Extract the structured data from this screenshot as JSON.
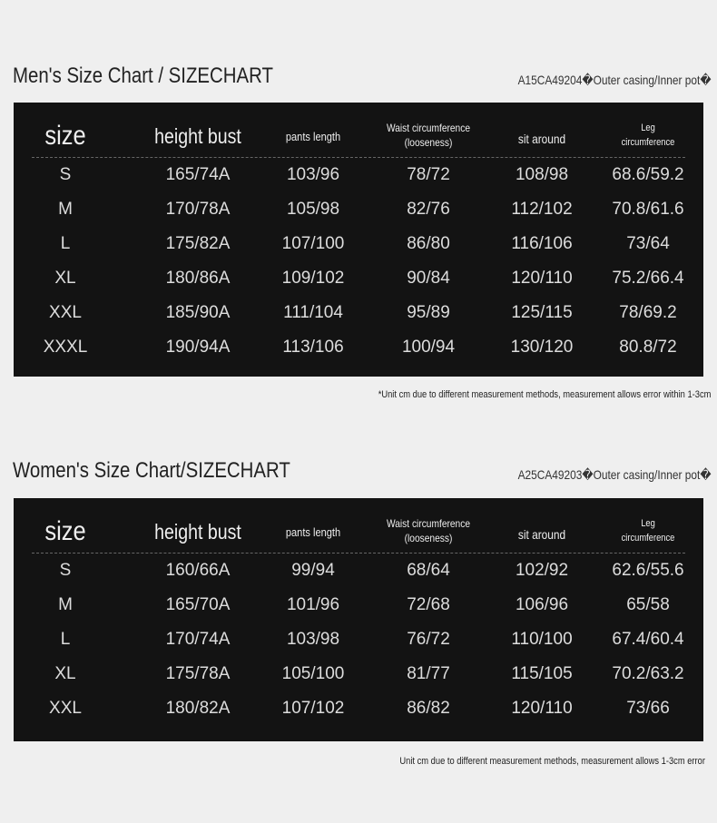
{
  "men": {
    "title": "Men's Size Chart / SIZECHART",
    "code": "A15CA49204�Outer casing/Inner pot�",
    "headers": [
      "size",
      "height bust",
      "pants length",
      "Waist circumference (looseness)",
      "sit around",
      "Leg circumference"
    ],
    "rows": [
      [
        "S",
        "165/74A",
        "103/96",
        "78/72",
        "108/98",
        "68.6/59.2"
      ],
      [
        "M",
        "170/78A",
        "105/98",
        "82/76",
        "112/102",
        "70.8/61.6"
      ],
      [
        "L",
        "175/82A",
        "107/100",
        "86/80",
        "116/106",
        "73/64"
      ],
      [
        "XL",
        "180/86A",
        "109/102",
        "90/84",
        "120/110",
        "75.2/66.4"
      ],
      [
        "XXL",
        "185/90A",
        "111/104",
        "95/89",
        "125/115",
        "78/69.2"
      ],
      [
        "XXXL",
        "190/94A",
        "113/106",
        "100/94",
        "130/120",
        "80.8/72"
      ]
    ],
    "note": "*Unit cm due to different measurement methods, measurement allows error within 1-3cm"
  },
  "women": {
    "title": "Women's Size Chart/SIZECHART",
    "code": "A25CA49203�Outer casing/Inner pot�",
    "headers": [
      "size",
      "height bust",
      "pants length",
      "Waist circumference (looseness)",
      "sit around",
      "Leg circumference"
    ],
    "rows": [
      [
        "S",
        "160/66A",
        "99/94",
        "68/64",
        "102/92",
        "62.6/55.6"
      ],
      [
        "M",
        "165/70A",
        "101/96",
        "72/68",
        "106/96",
        "65/58"
      ],
      [
        "L",
        "170/74A",
        "103/98",
        "76/72",
        "110/100",
        "67.4/60.4"
      ],
      [
        "XL",
        "175/78A",
        "105/100",
        "81/77",
        "115/105",
        "70.2/63.2"
      ],
      [
        "XXL",
        "180/82A",
        "107/102",
        "86/82",
        "120/110",
        "73/66"
      ]
    ],
    "note": "Unit cm due to different measurement methods, measurement allows 1-3cm error"
  }
}
